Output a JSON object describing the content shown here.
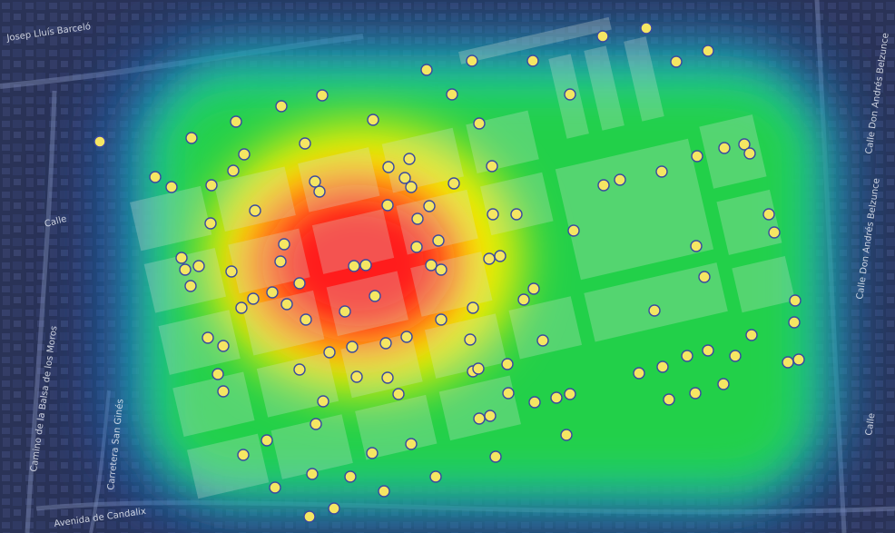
{
  "map": {
    "type": "heatmap-over-satellite",
    "street_labels": [
      "Josep Lluís Barceló",
      "Camino de la Balsa de los Moros",
      "Carretera San Ginés",
      "Avenida de Candalix",
      "Calle",
      "Calle Don Andrés Belzunce",
      "Calle Don Andrés Belzunce",
      "Calle"
    ],
    "colors": {
      "heat_low": "#1e3fbf",
      "heat_mid_low": "#1bc8c8",
      "heat_mid": "#22d04a",
      "heat_mid_high": "#f6f000",
      "heat_high": "#ff1e1e",
      "point_fill": "#f5e663",
      "point_stroke": "#3a4aa0"
    },
    "legend": null
  }
}
